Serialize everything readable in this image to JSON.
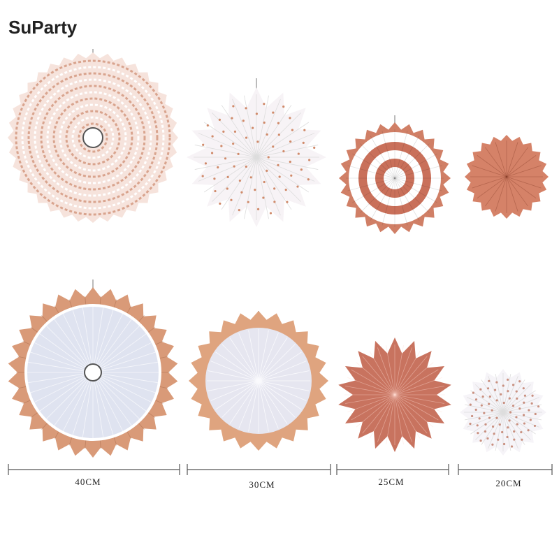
{
  "logo": "SuParty",
  "sizes": [
    "40CM",
    "30CM",
    "25CM",
    "20CM"
  ]
}
